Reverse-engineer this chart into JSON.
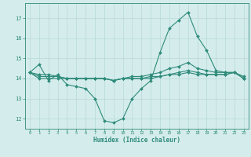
{
  "xlabel": "Humidex (Indice chaleur)",
  "x_values": [
    0,
    1,
    2,
    3,
    4,
    5,
    6,
    7,
    8,
    9,
    10,
    11,
    12,
    13,
    14,
    15,
    16,
    17,
    18,
    19,
    20,
    21,
    22,
    23
  ],
  "line1_y": [
    14.3,
    14.7,
    13.9,
    14.2,
    13.7,
    13.6,
    13.5,
    13.0,
    11.9,
    11.8,
    12.0,
    13.0,
    13.5,
    13.9,
    15.3,
    16.5,
    16.9,
    17.3,
    16.1,
    15.4,
    14.4,
    14.3,
    14.3,
    14.1
  ],
  "line2_y": [
    14.3,
    14.0,
    14.0,
    14.0,
    14.0,
    14.0,
    14.0,
    14.0,
    14.0,
    13.9,
    14.0,
    14.1,
    14.1,
    14.2,
    14.3,
    14.5,
    14.6,
    14.8,
    14.5,
    14.4,
    14.3,
    14.3,
    14.3,
    14.0
  ],
  "line3_y": [
    14.3,
    14.1,
    14.1,
    14.1,
    14.0,
    14.0,
    14.0,
    14.0,
    14.0,
    13.9,
    14.0,
    14.0,
    14.0,
    14.0,
    14.1,
    14.2,
    14.3,
    14.4,
    14.3,
    14.2,
    14.2,
    14.2,
    14.3,
    14.0
  ],
  "line4_y": [
    14.3,
    14.2,
    14.2,
    14.1,
    14.0,
    14.0,
    14.0,
    14.0,
    14.0,
    13.9,
    14.0,
    14.0,
    14.0,
    14.1,
    14.1,
    14.2,
    14.2,
    14.3,
    14.2,
    14.2,
    14.2,
    14.2,
    14.3,
    14.0
  ],
  "line_color": "#2e8b7a",
  "bg_color": "#d4ecec",
  "grid_color": "#b8d8d8",
  "ylim": [
    11.5,
    17.75
  ],
  "yticks": [
    12,
    13,
    14,
    15,
    16,
    17
  ],
  "xticks": [
    0,
    1,
    2,
    3,
    4,
    5,
    6,
    7,
    8,
    9,
    10,
    11,
    12,
    13,
    14,
    15,
    16,
    17,
    18,
    19,
    20,
    21,
    22,
    23
  ]
}
